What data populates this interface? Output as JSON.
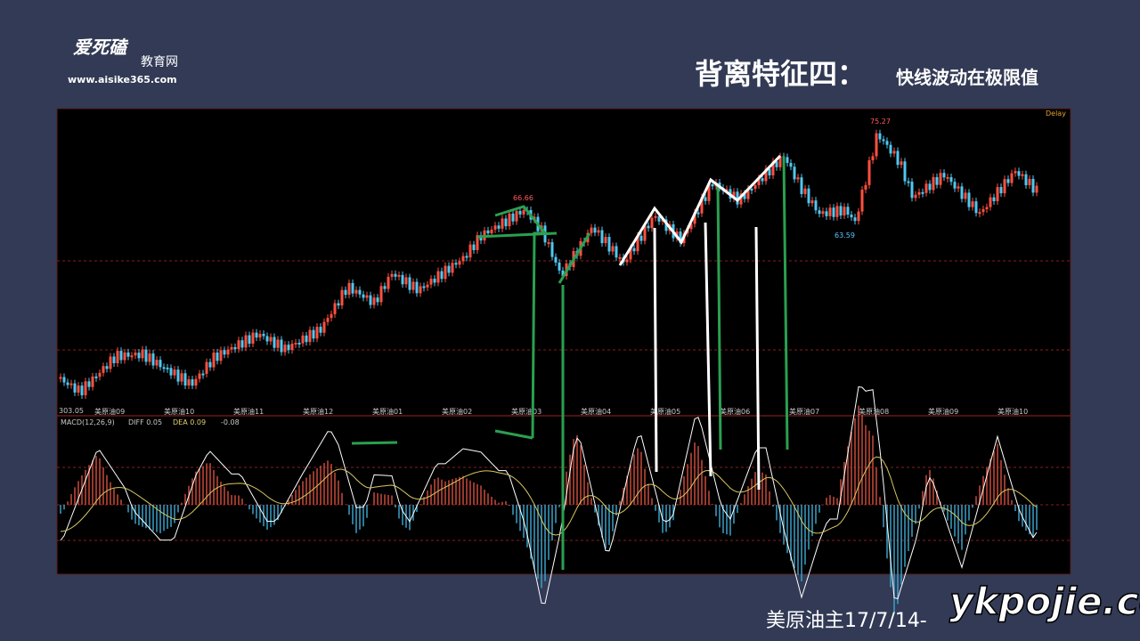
{
  "logo": {
    "brand": "爱死磕",
    "sub": "教育网",
    "url": "www.aisike365.com"
  },
  "title": {
    "main": "背离特征四：",
    "sub": "快线波动在极限值"
  },
  "chart": {
    "delay": "Delay",
    "start_label": "303.05",
    "price_labels": [
      {
        "text": "66.66"
      },
      {
        "text": "75.27"
      },
      {
        "text": "63.59"
      }
    ],
    "x_labels": [
      "美原油09",
      "美原油10",
      "美原油11",
      "美原油12",
      "美原油01",
      "美原油02",
      "美原油03",
      "美原油04",
      "美原油05",
      "美原油06",
      "美原油07",
      "美原油08",
      "美原油09",
      "美原油10"
    ],
    "macd": {
      "name": "MACD(12,26,9)",
      "diff": "DIFF 0.05",
      "dea": "DEA 0.09",
      "value": "-0.08"
    }
  },
  "caption": "美原油主17/7/14-",
  "watermark": "ykpojie.com"
}
